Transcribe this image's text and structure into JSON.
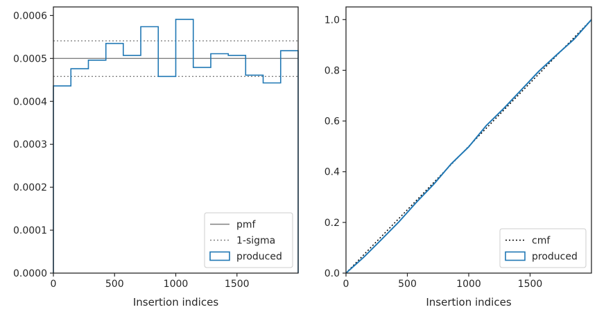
{
  "chart_data": [
    {
      "type": "histogram",
      "panel": "left",
      "xlabel": "Insertion indices",
      "ylabel": "",
      "xlim": [
        0,
        2000
      ],
      "ylim": [
        0,
        0.00062
      ],
      "xticks": [
        0,
        500,
        1000,
        1500
      ],
      "xtick_labels": [
        "0",
        "500",
        "1000",
        "1500"
      ],
      "yticks": [
        0,
        0.0001,
        0.0002,
        0.0003,
        0.0004,
        0.0005,
        0.0006
      ],
      "ytick_labels": [
        "0.0000",
        "0.0001",
        "0.0002",
        "0.0003",
        "0.0004",
        "0.0005",
        "0.0006"
      ],
      "reference_lines": [
        {
          "name": "pmf",
          "value": 0.0005,
          "style": "solid",
          "color": "#808080"
        },
        {
          "name": "1-sigma",
          "values": [
            0.000458,
            0.000541
          ],
          "style": "dotted",
          "color": "#808080"
        }
      ],
      "series": [
        {
          "name": "produced",
          "style": "step",
          "color": "#1f77b4",
          "bin_edges": [
            0,
            143,
            286,
            429,
            571,
            714,
            857,
            1000,
            1143,
            1286,
            1429,
            1571,
            1714,
            1857,
            2000
          ],
          "values": [
            0.000436,
            0.000476,
            0.000496,
            0.000535,
            0.000507,
            0.000574,
            0.000458,
            0.000591,
            0.000479,
            0.000511,
            0.000507,
            0.000461,
            0.000443,
            0.000518
          ]
        }
      ],
      "legend": {
        "position": "lower right",
        "entries": [
          {
            "label": "pmf",
            "style": "solid",
            "color": "#808080"
          },
          {
            "label": "1-sigma",
            "style": "dotted",
            "color": "#808080"
          },
          {
            "label": "produced",
            "style": "box",
            "color": "#1f77b4"
          }
        ]
      },
      "grid": false
    },
    {
      "type": "line",
      "panel": "right",
      "xlabel": "Insertion indices",
      "ylabel": "",
      "xlim": [
        0,
        2000
      ],
      "ylim": [
        0,
        1.05
      ],
      "xticks": [
        0,
        500,
        1000,
        1500
      ],
      "xtick_labels": [
        "0",
        "500",
        "1000",
        "1500"
      ],
      "yticks": [
        0,
        0.2,
        0.4,
        0.6,
        0.8,
        1.0
      ],
      "ytick_labels": [
        "0.0",
        "0.2",
        "0.4",
        "0.6",
        "0.8",
        "1.0"
      ],
      "series": [
        {
          "name": "cmf",
          "style": "dotted",
          "color": "#000000",
          "x": [
            0,
            2000
          ],
          "y": [
            0,
            1
          ]
        },
        {
          "name": "produced",
          "style": "solid",
          "color": "#1f77b4",
          "x": [
            0,
            143,
            286,
            429,
            571,
            714,
            857,
            1000,
            1143,
            1286,
            1429,
            1571,
            1714,
            1857,
            2000
          ],
          "y": [
            0,
            0.062,
            0.131,
            0.201,
            0.278,
            0.35,
            0.431,
            0.498,
            0.582,
            0.65,
            0.723,
            0.796,
            0.86,
            0.922,
            1.0
          ]
        }
      ],
      "legend": {
        "position": "lower right",
        "entries": [
          {
            "label": "cmf",
            "style": "dotted",
            "color": "#000000"
          },
          {
            "label": "produced",
            "style": "box",
            "color": "#1f77b4"
          }
        ]
      },
      "grid": false
    }
  ]
}
